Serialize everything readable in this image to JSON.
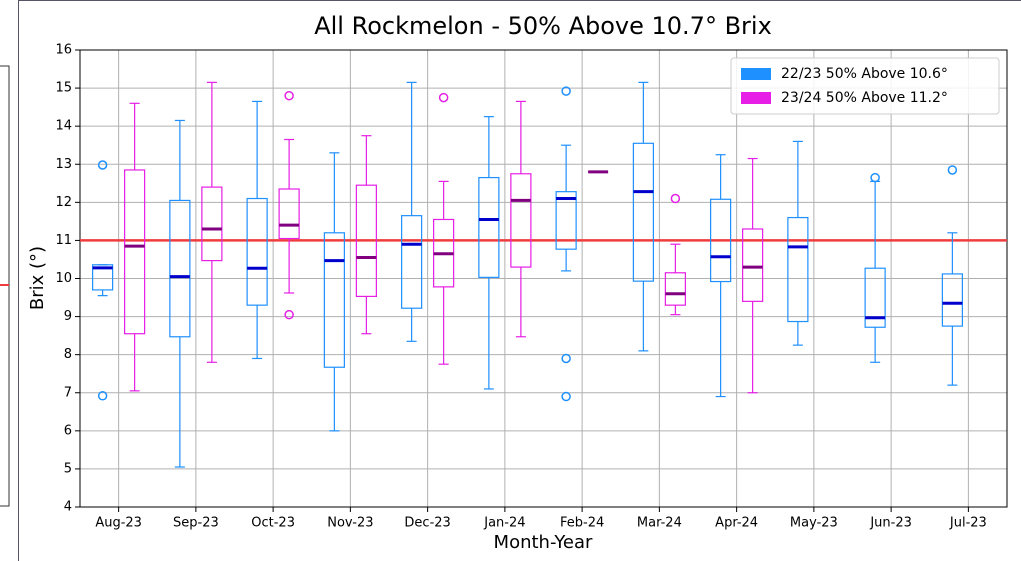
{
  "chart_data": {
    "type": "box",
    "title": "All Rockmelon - 50% Above 10.7° Brix",
    "x_label": "Month-Year",
    "y_label": "Brix (°)",
    "categories": [
      "Aug-23",
      "Sep-23",
      "Oct-23",
      "Nov-23",
      "Dec-23",
      "Jan-24",
      "Feb-24",
      "Mar-24",
      "Apr-24",
      "May-23",
      "Jun-23",
      "Jul-23"
    ],
    "ylim": [
      4,
      16
    ],
    "yticks": [
      4,
      5,
      6,
      7,
      8,
      9,
      10,
      11,
      12,
      13,
      14,
      15,
      16
    ],
    "grid": true,
    "legend": "upper right",
    "reference_line": {
      "value": 11,
      "color": "#f03c3c"
    },
    "series": [
      {
        "name": "22/23 50% Above 10.6°",
        "color": "#1e90ff",
        "median_color": "#0000cd",
        "boxes": [
          {
            "min": 9.55,
            "q1": 9.7,
            "median": 10.28,
            "q3": 10.36,
            "max": 10.36,
            "outliers": [
              12.98,
              6.92
            ]
          },
          {
            "min": 5.05,
            "q1": 8.47,
            "median": 10.05,
            "q3": 12.05,
            "max": 14.15,
            "outliers": []
          },
          {
            "min": 7.9,
            "q1": 9.3,
            "median": 10.27,
            "q3": 12.1,
            "max": 14.65,
            "outliers": []
          },
          {
            "min": 6.0,
            "q1": 7.67,
            "median": 10.47,
            "q3": 11.2,
            "max": 13.3,
            "outliers": []
          },
          {
            "min": 8.35,
            "q1": 9.22,
            "median": 10.9,
            "q3": 11.65,
            "max": 15.15,
            "outliers": []
          },
          {
            "min": 7.1,
            "q1": 10.03,
            "median": 11.55,
            "q3": 12.65,
            "max": 14.25,
            "outliers": []
          },
          {
            "min": 10.2,
            "q1": 10.77,
            "median": 12.1,
            "q3": 12.28,
            "max": 13.5,
            "outliers": [
              14.92,
              7.9,
              6.9
            ]
          },
          {
            "min": 8.1,
            "q1": 9.93,
            "median": 12.28,
            "q3": 13.55,
            "max": 15.15,
            "outliers": []
          },
          {
            "min": 6.9,
            "q1": 9.92,
            "median": 10.57,
            "q3": 12.08,
            "max": 13.25,
            "outliers": []
          },
          {
            "min": 8.25,
            "q1": 8.87,
            "median": 10.83,
            "q3": 11.6,
            "max": 13.6,
            "outliers": []
          },
          {
            "min": 7.8,
            "q1": 8.72,
            "median": 8.97,
            "q3": 10.27,
            "max": 12.55,
            "outliers": [
              12.65
            ]
          },
          {
            "min": 7.2,
            "q1": 8.75,
            "median": 9.35,
            "q3": 10.12,
            "max": 11.2,
            "outliers": [
              12.85
            ]
          }
        ]
      },
      {
        "name": "23/24 50% Above 11.2°",
        "color": "#e61ee6",
        "median_color": "#800080",
        "boxes": [
          {
            "min": 7.05,
            "q1": 8.55,
            "median": 10.85,
            "q3": 12.85,
            "max": 14.6,
            "outliers": []
          },
          {
            "min": 7.8,
            "q1": 10.47,
            "median": 11.3,
            "q3": 12.4,
            "max": 15.15,
            "outliers": []
          },
          {
            "min": 9.62,
            "q1": 11.05,
            "median": 11.4,
            "q3": 12.35,
            "max": 13.65,
            "outliers": [
              14.8,
              9.05
            ]
          },
          {
            "min": 8.55,
            "q1": 9.53,
            "median": 10.55,
            "q3": 12.45,
            "max": 13.75,
            "outliers": []
          },
          {
            "min": 7.75,
            "q1": 9.78,
            "median": 10.65,
            "q3": 11.55,
            "max": 12.55,
            "outliers": [
              14.75
            ]
          },
          {
            "min": 8.47,
            "q1": 10.3,
            "median": 12.05,
            "q3": 12.75,
            "max": 14.65,
            "outliers": []
          },
          {
            "min": 12.8,
            "q1": 12.8,
            "median": 12.8,
            "q3": 12.8,
            "max": 12.8,
            "outliers": []
          },
          {
            "min": 9.05,
            "q1": 9.3,
            "median": 9.6,
            "q3": 10.15,
            "max": 10.9,
            "outliers": [
              12.1
            ]
          },
          {
            "min": 7.0,
            "q1": 9.4,
            "median": 10.3,
            "q3": 11.3,
            "max": 13.15,
            "outliers": []
          },
          null,
          null,
          null
        ]
      }
    ]
  }
}
